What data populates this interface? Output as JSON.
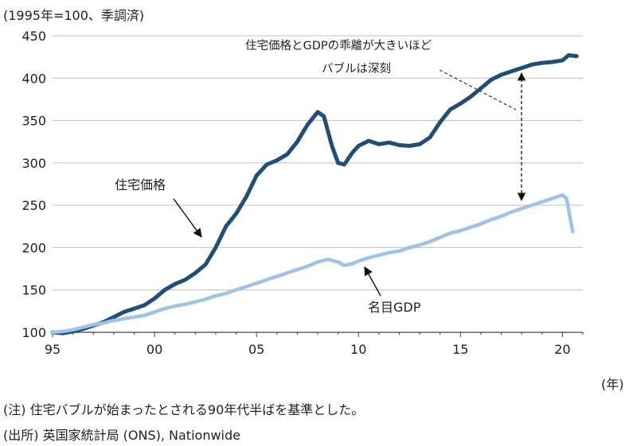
{
  "unit_label": "(1995年=100、季調済)",
  "x_unit": "(年)",
  "notes": [
    "(注) 住宅バブルが始まったとされる90年代半ばを基準とした。",
    "(出所) 英国家統計局 (ONS), Nationwide"
  ],
  "annotations": {
    "gap_line1": "住宅価格とGDPの乖離が大きいほど",
    "gap_line2": "バブルは深刻",
    "house_label": "住宅価格",
    "gdp_label": "名目GDP"
  },
  "colors": {
    "house": "#1f4e79",
    "gdp": "#9dc3e6",
    "axis": "#404040"
  },
  "chart_data": {
    "type": "line",
    "title": "",
    "xlabel": "(年)",
    "ylabel": "(1995年=100、季調済)",
    "xlim": [
      1995,
      2021
    ],
    "ylim": [
      100,
      450
    ],
    "x_ticks": [
      1995,
      2000,
      2005,
      2010,
      2015,
      2020
    ],
    "x_tick_labels": [
      "95",
      "00",
      "05",
      "10",
      "15",
      "20"
    ],
    "y_ticks": [
      100,
      150,
      200,
      250,
      300,
      350,
      400,
      450
    ],
    "grid": "horizontal",
    "series": [
      {
        "name": "住宅価格",
        "color": "#1f4e79",
        "points": [
          [
            1995.0,
            100
          ],
          [
            1995.5,
            99
          ],
          [
            1996.0,
            101
          ],
          [
            1996.5,
            104
          ],
          [
            1997.0,
            108
          ],
          [
            1997.5,
            112
          ],
          [
            1998.0,
            118
          ],
          [
            1998.5,
            124
          ],
          [
            1999.0,
            128
          ],
          [
            1999.5,
            132
          ],
          [
            2000.0,
            140
          ],
          [
            2000.5,
            150
          ],
          [
            2001.0,
            157
          ],
          [
            2001.5,
            162
          ],
          [
            2002.0,
            170
          ],
          [
            2002.5,
            180
          ],
          [
            2003.0,
            200
          ],
          [
            2003.5,
            225
          ],
          [
            2004.0,
            240
          ],
          [
            2004.5,
            260
          ],
          [
            2005.0,
            285
          ],
          [
            2005.5,
            298
          ],
          [
            2006.0,
            303
          ],
          [
            2006.5,
            310
          ],
          [
            2007.0,
            325
          ],
          [
            2007.5,
            345
          ],
          [
            2008.0,
            360
          ],
          [
            2008.3,
            355
          ],
          [
            2008.7,
            320
          ],
          [
            2009.0,
            300
          ],
          [
            2009.3,
            298
          ],
          [
            2009.7,
            312
          ],
          [
            2010.0,
            320
          ],
          [
            2010.5,
            326
          ],
          [
            2011.0,
            322
          ],
          [
            2011.5,
            324
          ],
          [
            2012.0,
            321
          ],
          [
            2012.5,
            320
          ],
          [
            2013.0,
            322
          ],
          [
            2013.5,
            330
          ],
          [
            2014.0,
            348
          ],
          [
            2014.5,
            363
          ],
          [
            2015.0,
            370
          ],
          [
            2015.5,
            378
          ],
          [
            2016.0,
            388
          ],
          [
            2016.5,
            398
          ],
          [
            2017.0,
            404
          ],
          [
            2017.5,
            408
          ],
          [
            2018.0,
            412
          ],
          [
            2018.5,
            416
          ],
          [
            2019.0,
            418
          ],
          [
            2019.5,
            419
          ],
          [
            2020.0,
            421
          ],
          [
            2020.3,
            427
          ],
          [
            2020.7,
            426
          ]
        ]
      },
      {
        "name": "名目GDP",
        "color": "#9dc3e6",
        "points": [
          [
            1995.0,
            100
          ],
          [
            1995.5,
            101
          ],
          [
            1996.0,
            103
          ],
          [
            1996.5,
            106
          ],
          [
            1997.0,
            109
          ],
          [
            1997.5,
            111
          ],
          [
            1998.0,
            114
          ],
          [
            1998.5,
            116
          ],
          [
            1999.0,
            118
          ],
          [
            1999.5,
            120
          ],
          [
            2000.0,
            124
          ],
          [
            2000.5,
            128
          ],
          [
            2001.0,
            131
          ],
          [
            2001.5,
            133
          ],
          [
            2002.0,
            136
          ],
          [
            2002.5,
            139
          ],
          [
            2003.0,
            143
          ],
          [
            2003.5,
            146
          ],
          [
            2004.0,
            150
          ],
          [
            2004.5,
            154
          ],
          [
            2005.0,
            158
          ],
          [
            2005.5,
            162
          ],
          [
            2006.0,
            166
          ],
          [
            2006.5,
            170
          ],
          [
            2007.0,
            174
          ],
          [
            2007.5,
            178
          ],
          [
            2008.0,
            183
          ],
          [
            2008.5,
            186
          ],
          [
            2009.0,
            183
          ],
          [
            2009.3,
            179
          ],
          [
            2009.7,
            181
          ],
          [
            2010.0,
            184
          ],
          [
            2010.5,
            188
          ],
          [
            2011.0,
            191
          ],
          [
            2011.5,
            194
          ],
          [
            2012.0,
            196
          ],
          [
            2012.5,
            200
          ],
          [
            2013.0,
            203
          ],
          [
            2013.5,
            207
          ],
          [
            2014.0,
            212
          ],
          [
            2014.5,
            217
          ],
          [
            2015.0,
            220
          ],
          [
            2015.5,
            224
          ],
          [
            2016.0,
            228
          ],
          [
            2016.5,
            233
          ],
          [
            2017.0,
            237
          ],
          [
            2017.5,
            242
          ],
          [
            2018.0,
            246
          ],
          [
            2018.5,
            250
          ],
          [
            2019.0,
            254
          ],
          [
            2019.5,
            258
          ],
          [
            2020.0,
            262
          ],
          [
            2020.2,
            258
          ],
          [
            2020.5,
            219
          ]
        ]
      }
    ]
  }
}
